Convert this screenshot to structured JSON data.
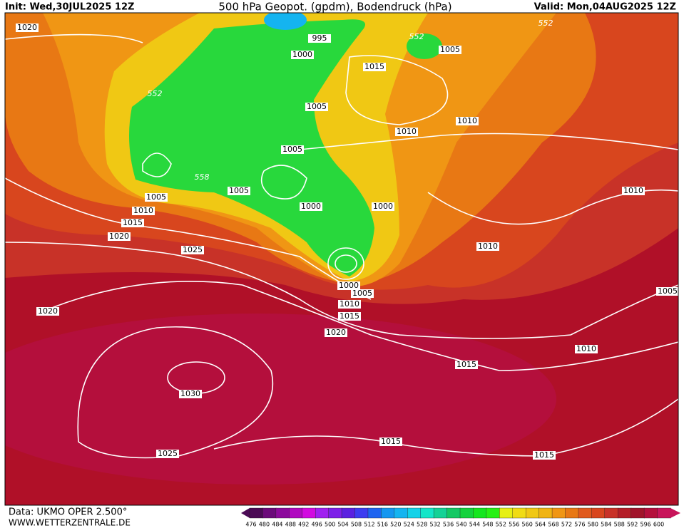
{
  "header": {
    "init": "Init: Wed,30JUL2025 12Z",
    "title": "500 hPa Geopot. (gpdm), Bodendruck (hPa)",
    "valid": "Valid: Mon,04AUG2025 12Z"
  },
  "footer": {
    "data": "Data: UKMO OPER 2.500°",
    "website": "WWW.WETTERZENTRALE.DE"
  },
  "colorbar": {
    "labels": [
      "476",
      "480",
      "484",
      "488",
      "492",
      "496",
      "500",
      "504",
      "508",
      "512",
      "516",
      "520",
      "524",
      "528",
      "532",
      "536",
      "540",
      "544",
      "548",
      "552",
      "556",
      "560",
      "564",
      "568",
      "572",
      "576",
      "580",
      "584",
      "588",
      "592",
      "596",
      "600"
    ],
    "colors": [
      "#4b0a55",
      "#6b0a7a",
      "#8c0a9c",
      "#b00ac0",
      "#d20ae0",
      "#a020f0",
      "#7d20e8",
      "#5a20e0",
      "#3c3cf0",
      "#1e64f0",
      "#1496f0",
      "#14b4f0",
      "#14d2e8",
      "#14e6c8",
      "#14d296",
      "#14c864",
      "#14d23c",
      "#14e61e",
      "#28f014",
      "#e6f014",
      "#f0dc14",
      "#f0c814",
      "#f0b414",
      "#f09614",
      "#e87814",
      "#e05a1e",
      "#d8461e",
      "#c83228",
      "#b41e28",
      "#a0142a",
      "#b40f3c",
      "#c8145a"
    ]
  },
  "isobar_labels": [
    "1020",
    "995",
    "552",
    "1005",
    "552",
    "1000",
    "1015",
    "552",
    "1005",
    "1010",
    "1010",
    "1005",
    "558",
    "1005",
    "1010",
    "1005",
    "1000",
    "1000",
    "1010",
    "1015",
    "1020",
    "1010",
    "1025",
    "1000",
    "1005",
    "1005",
    "1010",
    "1020",
    "1015",
    "1020",
    "1010",
    "1015",
    "1030",
    "1015",
    "1025",
    "1015"
  ]
}
